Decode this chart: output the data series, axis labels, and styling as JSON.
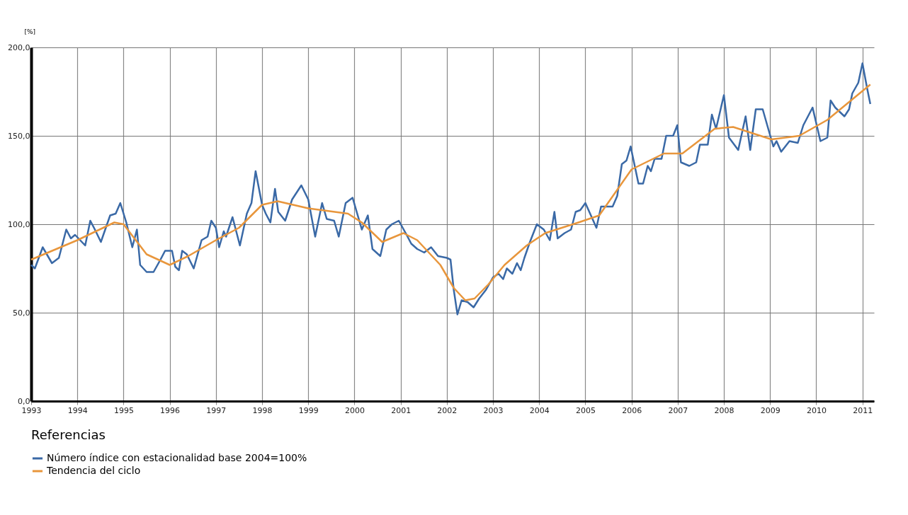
{
  "chart_data": {
    "type": "line",
    "ylabel": "[%]",
    "legend_title": "Referencias",
    "legend": "bottom",
    "grid": true,
    "line_style": "solid",
    "marker": "none",
    "xlim": [
      1993,
      2011.25
    ],
    "xticks": [
      1993,
      1994,
      1995,
      1996,
      1997,
      1998,
      1999,
      2000,
      2001,
      2002,
      2003,
      2004,
      2005,
      2006,
      2007,
      2008,
      2009,
      2010,
      2011
    ],
    "ylim": [
      0,
      200
    ],
    "yticks": [
      {
        "value": 0,
        "label": "0,0"
      },
      {
        "value": 50,
        "label": "50,0"
      },
      {
        "value": 100,
        "label": "100,0"
      },
      {
        "value": 150,
        "label": "150,0"
      },
      {
        "value": 200,
        "label": "200,0"
      }
    ],
    "series": [
      {
        "name": "Número índice con estacionalidad base 2004=100%",
        "color": "#3a69a6",
        "x": [
          1993,
          1993.08,
          1993.25,
          1993.45,
          1993.6,
          1993.76,
          1993.86,
          1993.95,
          1994.17,
          1994.28,
          1994.38,
          1994.51,
          1994.71,
          1994.83,
          1994.93,
          1995.06,
          1995.19,
          1995.29,
          1995.36,
          1995.5,
          1995.65,
          1995.8,
          1995.9,
          1996.05,
          1996.12,
          1996.2,
          1996.27,
          1996.37,
          1996.52,
          1996.69,
          1996.82,
          1996.9,
          1997,
          1997.07,
          1997.17,
          1997.22,
          1997.36,
          1997.47,
          1997.52,
          1997.67,
          1997.77,
          1997.86,
          1998,
          1998.08,
          1998.18,
          1998.28,
          1998.35,
          1998.5,
          1998.65,
          1998.85,
          1999,
          1999.15,
          1999.3,
          1999.4,
          1999.56,
          1999.66,
          1999.81,
          1999.96,
          2000.16,
          2000.29,
          2000.39,
          2000.56,
          2000.69,
          2000.81,
          2000.96,
          2001.13,
          2001.23,
          2001.36,
          2001.51,
          2001.66,
          2001.81,
          2002,
          2002.08,
          2002.15,
          2002.23,
          2002.32,
          2002.45,
          2002.58,
          2002.7,
          2002.85,
          2003,
          2003.12,
          2003.22,
          2003.3,
          2003.42,
          2003.52,
          2003.6,
          2003.68,
          2003.8,
          2003.95,
          2004.1,
          2004.23,
          2004.33,
          2004.4,
          2004.55,
          2004.69,
          2004.79,
          2004.89,
          2005,
          2005.12,
          2005.24,
          2005.34,
          2005.59,
          2005.69,
          2005.79,
          2005.89,
          2005.98,
          2006.15,
          2006.25,
          2006.35,
          2006.42,
          2006.5,
          2006.65,
          2006.75,
          2006.9,
          2006.99,
          2007.07,
          2007.25,
          2007.4,
          2007.48,
          2007.65,
          2007.74,
          2007.83,
          2008,
          2008.11,
          2008.31,
          2008.47,
          2008.57,
          2008.69,
          2008.84,
          2008.96,
          2009.07,
          2009.14,
          2009.24,
          2009.42,
          2009.6,
          2009.72,
          2009.92,
          2010.09,
          2010.24,
          2010.31,
          2010.41,
          2010.61,
          2010.71,
          2010.78,
          2010.91,
          2011,
          2011.1,
          2011.17
        ],
        "values": [
          77,
          75,
          87,
          78,
          81,
          97,
          92,
          94,
          88,
          102,
          97,
          90,
          105,
          106,
          112,
          101,
          87,
          97,
          77,
          73,
          73,
          80,
          85,
          85,
          76,
          74,
          85,
          83,
          75,
          91,
          93,
          102,
          98,
          87,
          96,
          93,
          104,
          93,
          88,
          106,
          112,
          130,
          111,
          106,
          101,
          120,
          107,
          102,
          114,
          122,
          114,
          93,
          112,
          103,
          102,
          93,
          112,
          115,
          97,
          105,
          86,
          82,
          97,
          100,
          102,
          94,
          89,
          86,
          84,
          87,
          82,
          81,
          80,
          63,
          49,
          57,
          56,
          53,
          58,
          63,
          70,
          72,
          69,
          75,
          72,
          78,
          74,
          81,
          90,
          100,
          97,
          91,
          107,
          92,
          95,
          97,
          107,
          108,
          112,
          105,
          98,
          110,
          110,
          116,
          134,
          136,
          144,
          123,
          123,
          133,
          130,
          137,
          137,
          150,
          150,
          156,
          135,
          133,
          135,
          145,
          145,
          162,
          154,
          173,
          149,
          142,
          161,
          142,
          165,
          165,
          154,
          144,
          147,
          141,
          147,
          146,
          156,
          166,
          147,
          149,
          170,
          166,
          161,
          165,
          174,
          180,
          191,
          177,
          168
        ]
      },
      {
        "name": "Tendencia del ciclo",
        "color": "#e8963c",
        "x": [
          1993,
          1994,
          1994.8,
          1995,
          1995.5,
          1996,
          1996.4,
          1997,
          1997.5,
          1998,
          1998.34,
          1999,
          1999.86,
          2000.16,
          2000.6,
          2001.06,
          2001.36,
          2001.86,
          2002.15,
          2002.4,
          2002.6,
          2002.9,
          2003.25,
          2003.73,
          2004.13,
          2004.85,
          2005.3,
          2006,
          2006.7,
          2007.1,
          2007.8,
          2008.2,
          2009.03,
          2009.63,
          2010.24,
          2011.17
        ],
        "values": [
          80,
          91,
          101,
          100,
          83,
          77,
          82,
          91,
          98,
          111,
          113,
          109,
          106,
          101,
          90,
          95,
          91,
          77,
          64,
          57,
          58,
          66,
          77,
          88,
          95,
          101,
          105,
          131,
          140,
          140,
          154,
          155,
          148,
          150,
          159,
          179
        ]
      }
    ]
  }
}
